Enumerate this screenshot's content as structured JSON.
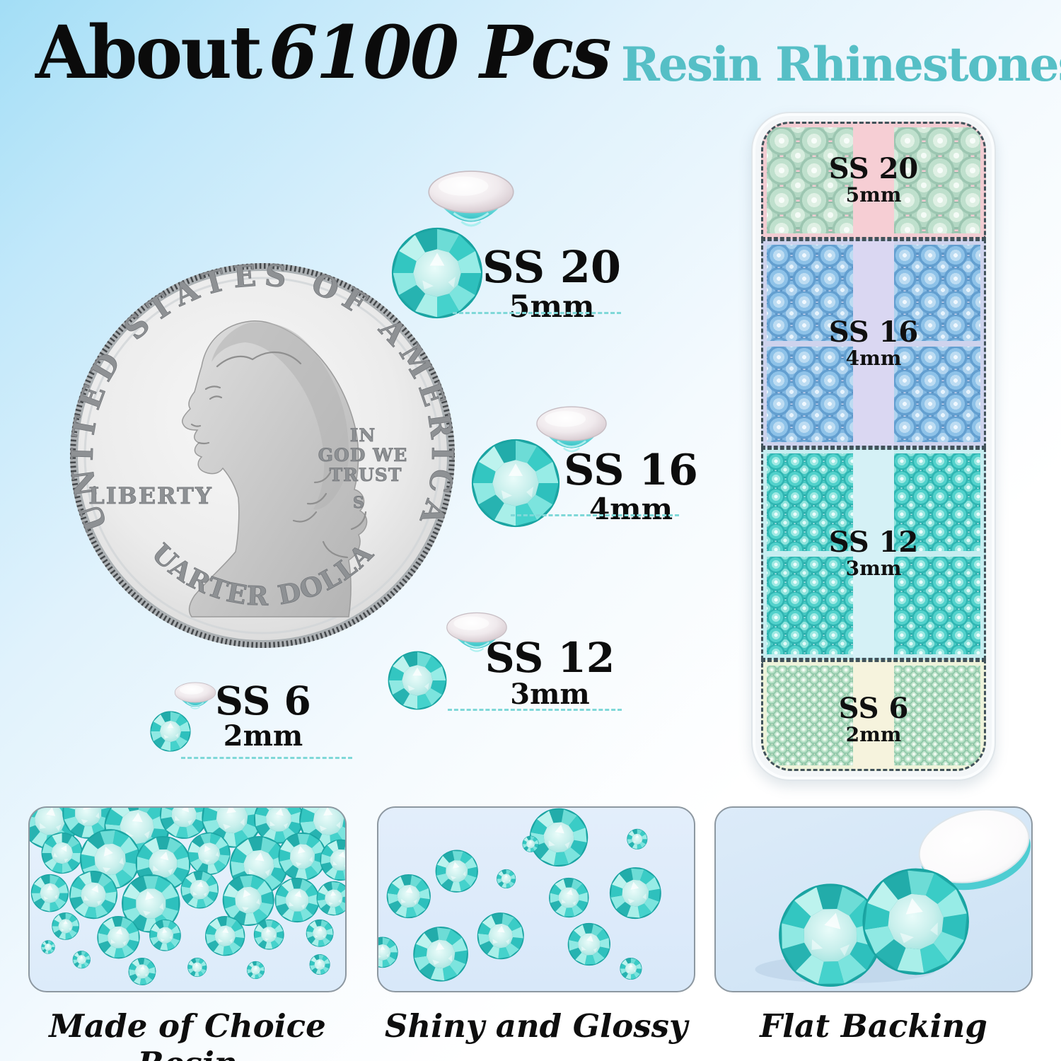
{
  "title": {
    "part1": "About",
    "part2": "6100 Pcs",
    "sub": "Resin Rhinestones"
  },
  "coin": {
    "arc_top": "UNITED STATES OF AMERICA",
    "liberty": "LIBERTY",
    "motto_line1": "IN",
    "motto_line2": "GOD WE",
    "motto_line3": "TRUST",
    "mint_mark": "S",
    "arc_bottom": "QUARTER DOLLAR"
  },
  "demo_sizes": [
    {
      "code": "SS 20",
      "mm": "5mm"
    },
    {
      "code": "SS 16",
      "mm": "4mm"
    },
    {
      "code": "SS 12",
      "mm": "3mm"
    },
    {
      "code": "SS 6",
      "mm": "2mm"
    }
  ],
  "case": {
    "sections": [
      {
        "code": "SS 20",
        "mm": "5mm"
      },
      {
        "code": "SS 16",
        "mm": "4mm"
      },
      {
        "code": "SS 12",
        "mm": "3mm"
      },
      {
        "code": "SS 6",
        "mm": "2mm"
      }
    ]
  },
  "features": [
    {
      "caption": "Made of Choice Resin"
    },
    {
      "caption": "Shiny and Glossy"
    },
    {
      "caption": "Flat Backing"
    }
  ],
  "colors": {
    "accent_teal": "#56bfc6",
    "stone_teal": "#35c4bf",
    "dash_teal": "#7fd8d8",
    "case_strip_ss20": "#f6ced4",
    "case_strip_ss16": "#dad7f2",
    "case_strip_ss12": "#d5f1f6",
    "case_strip_ss6": "#f6f3dd"
  }
}
